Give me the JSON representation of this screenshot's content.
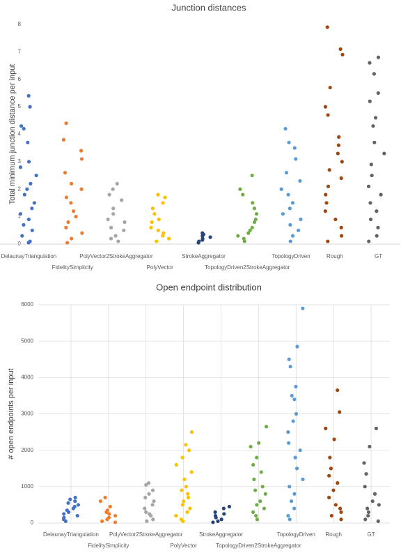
{
  "chart_data": [
    {
      "type": "strip",
      "title": "Junction distances",
      "y_label": "Total minimum junction distance per input",
      "categories": [
        "DelaunayTriangulation",
        "FidelitySimplicity",
        "PolyVector2StrokeAggregator",
        "PolyVector",
        "StrokeAggregator",
        "TopologyDriven2StrokeAggregator",
        "TopologyDriven",
        "Rough",
        "GT"
      ],
      "colors": [
        "#4472c4",
        "#ed7d31",
        "#a5a5a5",
        "#ffc000",
        "#264478",
        "#70ad47",
        "#5b9bd5",
        "#9e480e",
        "#636363"
      ],
      "values": [
        [
          5.4,
          5.0,
          4.3,
          4.2,
          3.7,
          3.0,
          2.8,
          2.5,
          2.2,
          2.0,
          1.8,
          1.5,
          1.3,
          1.1,
          0.9,
          0.7,
          0.5,
          0.3,
          0.1,
          0.05
        ],
        [
          4.4,
          3.8,
          3.4,
          3.1,
          2.6,
          2.2,
          2.0,
          1.7,
          1.5,
          1.2,
          1.0,
          0.8,
          0.6,
          0.4,
          0.2,
          0.05
        ],
        [
          2.2,
          2.0,
          1.8,
          1.6,
          1.3,
          1.1,
          0.9,
          0.8,
          0.6,
          0.5,
          0.3,
          0.2,
          0.1
        ],
        [
          1.8,
          1.7,
          1.5,
          1.3,
          1.1,
          0.9,
          0.8,
          0.6,
          0.5,
          0.4,
          0.3,
          0.2,
          0.1
        ],
        [
          0.4,
          0.35,
          0.3,
          0.25,
          0.2,
          0.15,
          0.1,
          0.05
        ],
        [
          2.5,
          2.0,
          1.8,
          1.5,
          1.3,
          1.1,
          0.9,
          0.8,
          0.6,
          0.5,
          0.4,
          0.3,
          0.2,
          0.1
        ],
        [
          4.2,
          3.7,
          3.5,
          3.1,
          2.6,
          2.3,
          2.0,
          1.8,
          1.5,
          1.3,
          1.1,
          0.9,
          0.7,
          0.5,
          0.3,
          0.1
        ],
        [
          7.9,
          7.1,
          6.9,
          5.7,
          5.0,
          4.7,
          3.9,
          3.6,
          3.3,
          3.0,
          2.7,
          2.4,
          2.1,
          1.8,
          1.5,
          1.2,
          0.9,
          0.6,
          0.3,
          0.1
        ],
        [
          6.8,
          6.6,
          6.2,
          5.5,
          5.2,
          4.6,
          4.3,
          3.7,
          3.3,
          2.9,
          2.5,
          2.1,
          1.8,
          1.5,
          1.2,
          0.9,
          0.6,
          0.3,
          0.1
        ]
      ],
      "ylim": [
        0,
        8
      ],
      "yticks": [
        0,
        1,
        2,
        3,
        4,
        5,
        6,
        7,
        8
      ],
      "grid": false
    },
    {
      "type": "strip",
      "title": "Open endpoint distribution",
      "y_label": "# open endpoints per input",
      "categories": [
        "DelaunayTriangulation",
        "FidelitySimplicity",
        "PolyVector2StrokeAggregator",
        "PolyVector",
        "StrokeAggregator",
        "TopologyDriven2StrokeAggregator",
        "TopologyDriven",
        "Rough",
        "GT"
      ],
      "colors": [
        "#4472c4",
        "#ed7d31",
        "#a5a5a5",
        "#ffc000",
        "#264478",
        "#70ad47",
        "#5b9bd5",
        "#9e480e",
        "#636363"
      ],
      "values": [
        [
          700,
          650,
          600,
          550,
          500,
          450,
          400,
          350,
          300,
          250,
          200,
          150,
          100,
          50
        ],
        [
          700,
          600,
          450,
          350,
          300,
          250,
          200,
          150,
          100,
          50,
          20
        ],
        [
          1100,
          1050,
          900,
          800,
          700,
          600,
          500,
          400,
          300,
          250,
          200,
          100,
          50
        ],
        [
          2500,
          2150,
          2000,
          1800,
          1600,
          1400,
          1200,
          1000,
          900,
          800,
          700,
          600,
          500,
          400,
          300,
          200,
          100,
          50
        ],
        [
          450,
          400,
          300,
          250,
          200,
          150,
          100,
          50,
          20
        ],
        [
          2650,
          2200,
          2100,
          1800,
          1600,
          1400,
          1200,
          1000,
          900,
          800,
          600,
          500,
          400,
          300,
          200,
          100
        ],
        [
          5900,
          4850,
          4500,
          4300,
          3750,
          3500,
          3400,
          3000,
          2800,
          2500,
          2200,
          2000,
          1800,
          1500,
          1200,
          1000,
          800,
          600,
          400,
          200,
          100
        ],
        [
          3650,
          3050,
          2600,
          2300,
          1800,
          1500,
          1300,
          1100,
          900,
          700,
          500,
          400,
          300,
          200,
          100
        ],
        [
          2600,
          2100,
          1650,
          1350,
          1000,
          800,
          600,
          500,
          400,
          300,
          200,
          100,
          50
        ]
      ],
      "ylim": [
        0,
        6000
      ],
      "yticks": [
        0,
        1000,
        2000,
        3000,
        4000,
        5000,
        6000
      ],
      "grid": true
    }
  ]
}
